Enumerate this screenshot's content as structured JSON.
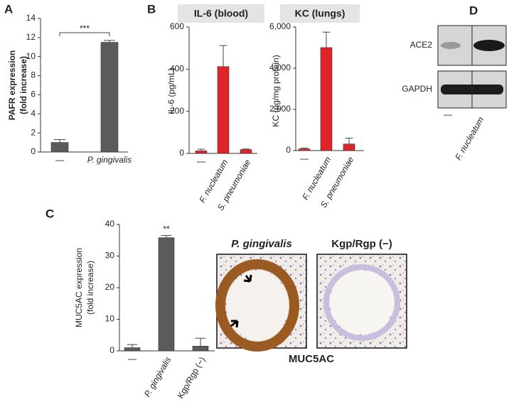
{
  "chart_data": [
    {
      "type": "bar",
      "panel": "A",
      "ylabel": [
        "PAFR expression",
        "(fold increase)"
      ],
      "categories": [
        "—",
        "P. gingivalis"
      ],
      "category_style": [
        "normal",
        "italic"
      ],
      "values": [
        1.0,
        11.5
      ],
      "errors": [
        0.3,
        0.2
      ],
      "color": "#5b5b5b",
      "ylim": [
        0,
        14
      ],
      "yticks": [
        0,
        2,
        4,
        6,
        8,
        10,
        12,
        14
      ],
      "annotation": "***"
    },
    {
      "type": "bar",
      "panel": "B",
      "title": "IL-6 (blood)",
      "ylabel": [
        "IL-6 (pg/mL)"
      ],
      "categories": [
        "—",
        "F. nucleatum",
        "S. pneumoniae"
      ],
      "category_style": [
        "normal",
        "italic",
        "italic"
      ],
      "values": [
        12,
        412,
        18
      ],
      "errors": [
        8,
        100,
        3
      ],
      "color": "#e0242a",
      "ylim": [
        0,
        600
      ],
      "yticks": [
        0,
        200,
        400,
        600
      ]
    },
    {
      "type": "bar",
      "title": "KC (lungs)",
      "ylabel": [
        "KC (pg/mg protein)"
      ],
      "categories": [
        "—",
        "F. nucleatum",
        "S. pneumoniae"
      ],
      "category_style": [
        "normal",
        "italic",
        "italic"
      ],
      "values": [
        80,
        5000,
        320
      ],
      "errors": [
        40,
        750,
        280
      ],
      "color": "#e0242a",
      "ylim": [
        0,
        6000
      ],
      "yticks": [
        0,
        {
          "value": 2000,
          "label": "2,000"
        },
        {
          "value": 4000,
          "label": "4,000"
        },
        {
          "value": 6000,
          "label": "6,000"
        }
      ]
    },
    {
      "type": "bar",
      "panel": "C",
      "ylabel": [
        "MUC5AC expression",
        "(fold increase)"
      ],
      "categories": [
        "—",
        "P. gingivalis",
        "Kgp/Rgp (−)"
      ],
      "category_style": [
        "normal",
        "italic",
        "normal"
      ],
      "values": [
        1.0,
        35.8,
        1.5
      ],
      "errors": [
        1.0,
        0.7,
        2.5
      ],
      "color": "#5b5b5b",
      "ylim": [
        0,
        40
      ],
      "yticks": [
        0,
        10,
        20,
        30,
        40
      ],
      "annotation": "**"
    }
  ],
  "histology": {
    "images": [
      "P. gingivalis",
      "Kgp/Rgp (−)"
    ],
    "caption": "MUC5AC"
  },
  "blot": {
    "panel": "D",
    "bands": [
      "ACE2",
      "GAPDH"
    ],
    "lanes": [
      "—",
      "F. nucleatum"
    ]
  }
}
